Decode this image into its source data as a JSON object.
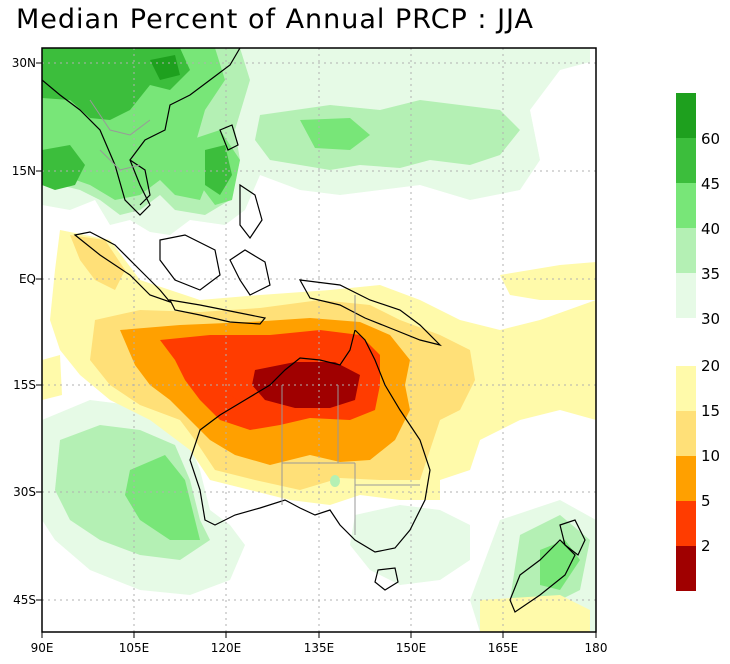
{
  "title": "Median Percent of Annual PRCP  :  JJA",
  "lat_labels": [
    "30N",
    "15N",
    "EQ",
    "15S",
    "30S",
    "45S"
  ],
  "lon_labels": [
    "90E",
    "105E",
    "120E",
    "135E",
    "150E",
    "165E",
    "180"
  ],
  "colorbar_wet": {
    "labels": [
      "60",
      "45",
      "40",
      "35",
      "30"
    ],
    "colors": [
      "#1ea01e",
      "#3cbe3c",
      "#78e678",
      "#b4f0b4",
      "#e6fae6"
    ]
  },
  "colorbar_dry": {
    "labels": [
      "20",
      "15",
      "10",
      "5",
      "2"
    ],
    "colors": [
      "#fffaaa",
      "#ffe078",
      "#ffa000",
      "#ff3c00",
      "#a00000"
    ]
  }
}
